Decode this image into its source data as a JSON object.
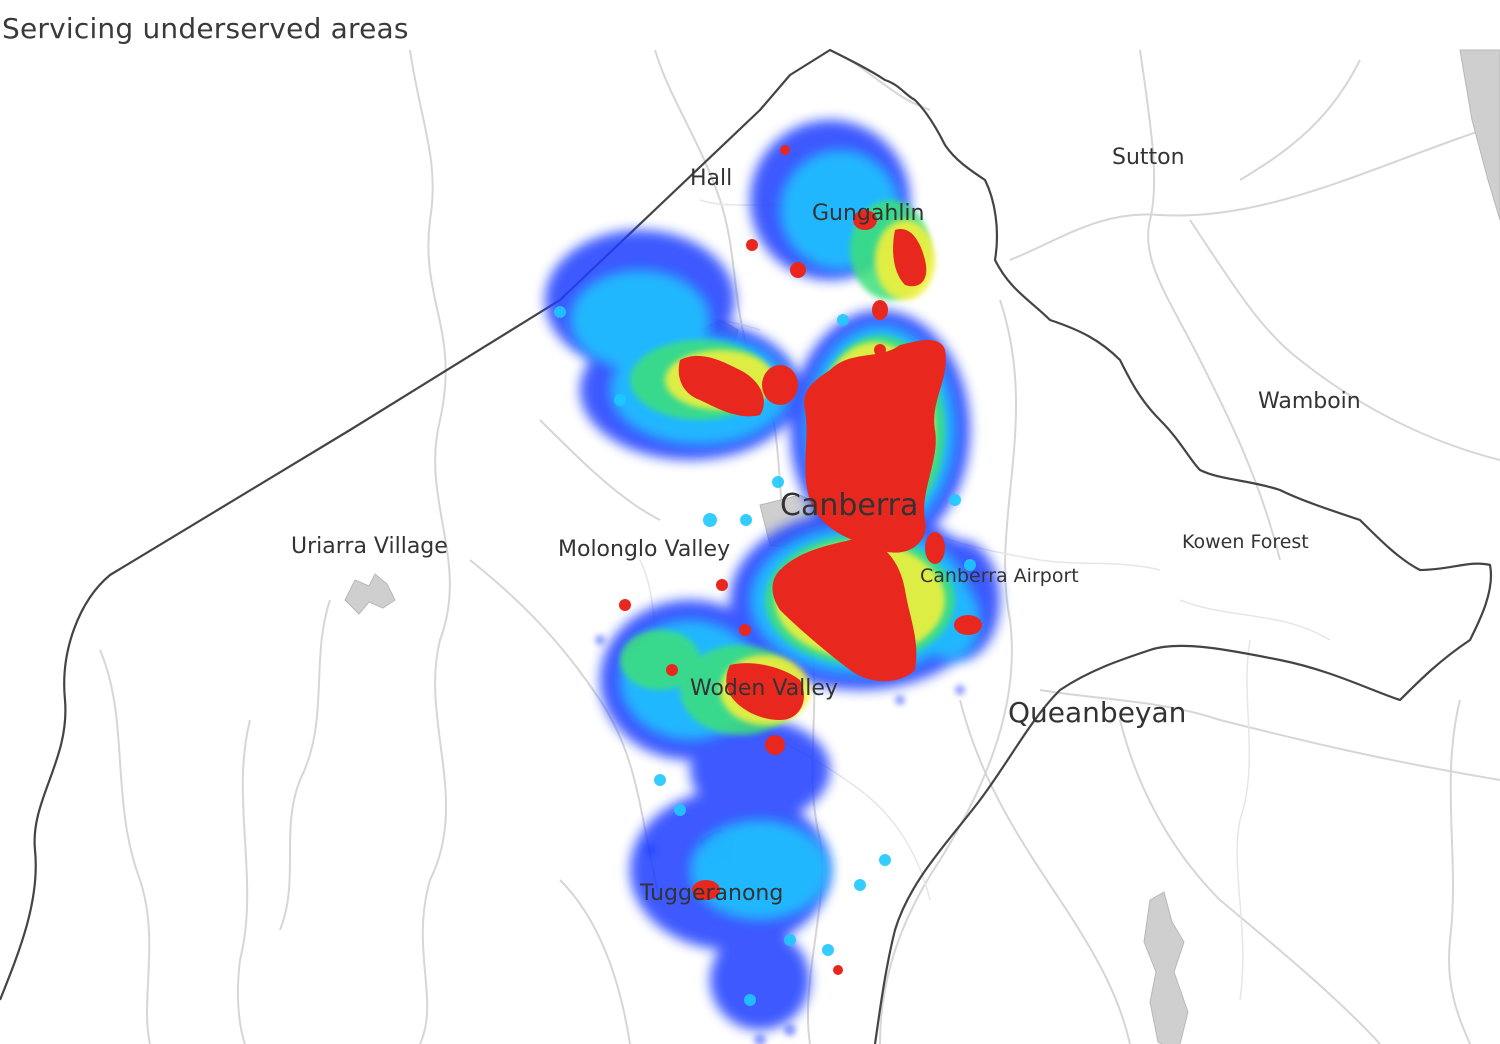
{
  "header": {
    "subtitle": "Servicing underserved areas"
  },
  "map": {
    "places": [
      {
        "key": "hall",
        "name": "Hall"
      },
      {
        "key": "sutton",
        "name": "Sutton"
      },
      {
        "key": "gungahlin",
        "name": "Gungahlin"
      },
      {
        "key": "wamboin",
        "name": "Wamboin"
      },
      {
        "key": "kowen",
        "name": "Kowen Forest"
      },
      {
        "key": "uriarra",
        "name": "Uriarra Village"
      },
      {
        "key": "molonglo",
        "name": "Molonglo Valley"
      },
      {
        "key": "canberra",
        "name": "Canberra"
      },
      {
        "key": "airport",
        "name": "Canberra Airport"
      },
      {
        "key": "queanbeyan",
        "name": "Queanbeyan"
      },
      {
        "key": "woden",
        "name": "Woden Valley"
      },
      {
        "key": "tuggeranong",
        "name": "Tuggeranong"
      }
    ],
    "heatmap_scale": [
      "#1a3cff",
      "#1ec8ff",
      "#3ce07a",
      "#f0f03c",
      "#ff8c1e",
      "#e8281e"
    ],
    "colors": {
      "background": "#ffffff",
      "boundary": "#444444",
      "roads": "#d4d4d4",
      "urban": "#cfcfcf"
    }
  }
}
